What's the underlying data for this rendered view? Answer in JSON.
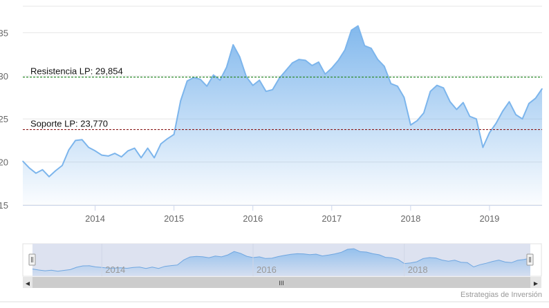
{
  "chart_data": {
    "type": "area",
    "title": "",
    "xlabel": "",
    "ylabel": "",
    "x_tick_labels": [
      "2014",
      "2015",
      "2016",
      "2017",
      "2018",
      "2019"
    ],
    "y_tick_labels": [
      "15",
      "20",
      "25",
      "30",
      "35"
    ],
    "xlim": [
      "2013-02",
      "2019-09"
    ],
    "ylim": [
      15,
      38
    ],
    "grid": true,
    "series": [
      {
        "x": [
          "2013-02",
          "2013-03",
          "2013-04",
          "2013-05",
          "2013-06",
          "2013-07",
          "2013-08",
          "2013-09",
          "2013-10",
          "2013-11",
          "2013-12",
          "2014-01",
          "2014-02",
          "2014-03",
          "2014-04",
          "2014-05",
          "2014-06",
          "2014-07",
          "2014-08",
          "2014-09",
          "2014-10",
          "2014-11",
          "2014-12",
          "2015-01",
          "2015-02",
          "2015-03",
          "2015-04",
          "2015-05",
          "2015-06",
          "2015-07",
          "2015-08",
          "2015-09",
          "2015-10",
          "2015-11",
          "2015-12",
          "2016-01",
          "2016-02",
          "2016-03",
          "2016-04",
          "2016-05",
          "2016-06",
          "2016-07",
          "2016-08",
          "2016-09",
          "2016-10",
          "2016-11",
          "2016-12",
          "2017-01",
          "2017-02",
          "2017-03",
          "2017-04",
          "2017-05",
          "2017-06",
          "2017-07",
          "2017-08",
          "2017-09",
          "2017-10",
          "2017-11",
          "2017-12",
          "2018-01",
          "2018-02",
          "2018-03",
          "2018-04",
          "2018-05",
          "2018-06",
          "2018-07",
          "2018-08",
          "2018-09",
          "2018-10",
          "2018-11",
          "2018-12",
          "2019-01",
          "2019-02",
          "2019-03",
          "2019-04",
          "2019-05",
          "2019-06",
          "2019-07",
          "2019-08",
          "2019-09"
        ],
        "values": [
          20.1,
          19.3,
          18.7,
          19.1,
          18.3,
          19.0,
          19.6,
          21.4,
          22.5,
          22.6,
          21.7,
          21.3,
          20.8,
          20.7,
          21.0,
          20.6,
          21.3,
          21.6,
          20.5,
          21.6,
          20.5,
          22.1,
          22.7,
          23.2,
          27.1,
          29.4,
          29.8,
          29.6,
          28.8,
          30.1,
          29.5,
          31.0,
          33.6,
          32.2,
          29.9,
          28.9,
          29.5,
          28.2,
          28.4,
          29.7,
          30.6,
          31.5,
          31.9,
          31.8,
          31.2,
          31.6,
          30.2,
          30.9,
          31.8,
          33.0,
          35.3,
          35.8,
          33.5,
          33.2,
          31.9,
          31.1,
          29.1,
          28.8,
          27.5,
          24.3,
          24.8,
          25.7,
          28.2,
          28.9,
          28.6,
          27.0,
          26.1,
          26.9,
          25.3,
          25.0,
          21.7,
          23.4,
          24.5,
          25.9,
          27.0,
          25.5,
          25.0,
          26.8,
          27.4,
          28.5
        ]
      }
    ],
    "levels": [
      {
        "label": "Resistencia LP: 29,854",
        "value": 29.854,
        "color": "#2e8b2e"
      },
      {
        "label": "Soporte LP: 23,770",
        "value": 23.77,
        "color": "#8b1a1a"
      }
    ],
    "navigator_labels": [
      "2014",
      "2016",
      "2018"
    ],
    "colors": {
      "line": "#7cb5ec",
      "area_top": "#7cb5ec",
      "area_bottom": "#ffffff",
      "navigator_mask": "#c5cde6",
      "grid": "#e6e6e6"
    }
  },
  "scrollbar": {
    "grip": "III",
    "left_arrow": "◀",
    "right_arrow": "▶"
  },
  "credits": "Estrategias de Inversión"
}
